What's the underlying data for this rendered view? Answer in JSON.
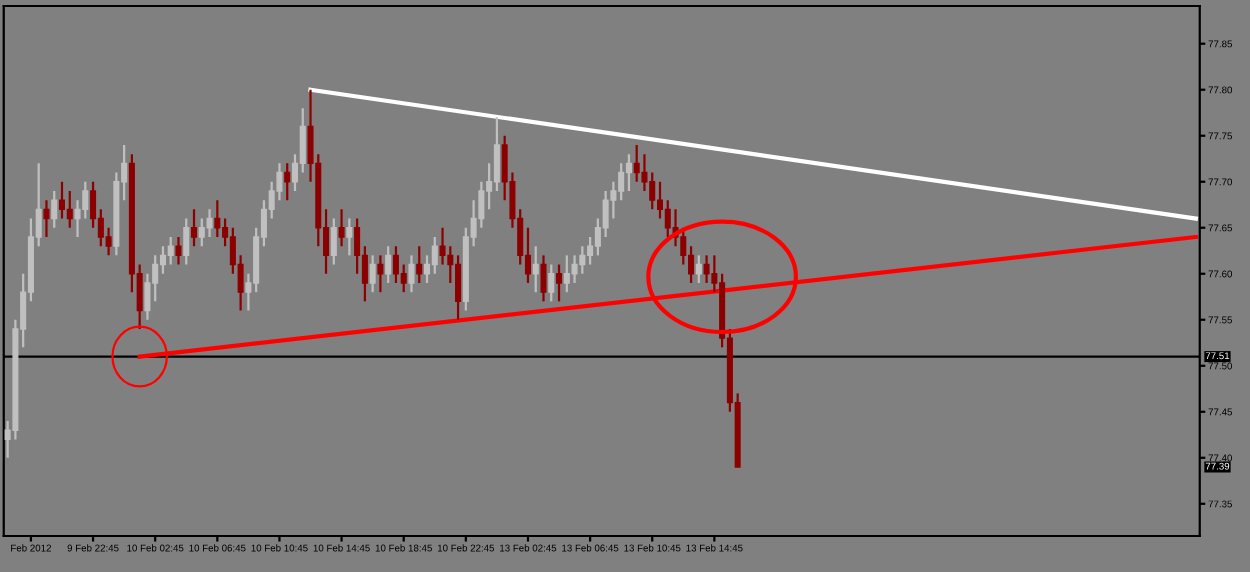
{
  "chart_data": {
    "type": "candlestick",
    "categories": [
      null,
      null,
      null,
      "Feb 2012",
      null,
      null,
      null,
      null,
      null,
      null,
      null,
      "9 Feb 22:45",
      null,
      null,
      null,
      null,
      null,
      null,
      null,
      "10 Feb 02:45",
      null,
      null,
      null,
      null,
      null,
      null,
      null,
      "10 Feb 06:45",
      null,
      null,
      null,
      null,
      null,
      null,
      null,
      "10 Feb 10:45",
      null,
      null,
      null,
      null,
      null,
      null,
      null,
      "10 Feb 14:45",
      null,
      null,
      null,
      null,
      null,
      null,
      null,
      "10 Feb 18:45",
      null,
      null,
      null,
      null,
      null,
      null,
      null,
      "10 Feb 22:45",
      null,
      null,
      null,
      null,
      null,
      null,
      null,
      "13 Feb 02:45",
      null,
      null,
      null,
      null,
      null,
      null,
      null,
      "13 Feb 06:45",
      null,
      null,
      null,
      null,
      null,
      null,
      null,
      "13 Feb 10:45",
      null,
      null,
      null,
      null,
      null,
      null,
      null,
      "13 Feb 14:45",
      null,
      null,
      null,
      null,
      null,
      null,
      null,
      null,
      null,
      null,
      null,
      null,
      null,
      null,
      null,
      null,
      null,
      null,
      null,
      null,
      null,
      null,
      null,
      null,
      null,
      null,
      null,
      null,
      null,
      null,
      null,
      null,
      null,
      null,
      null,
      null,
      null,
      null,
      null,
      null,
      null,
      null,
      null,
      null,
      null,
      null,
      null,
      null,
      null,
      null,
      null,
      null,
      null,
      null,
      null,
      null,
      null,
      null,
      null,
      null,
      null,
      null
    ],
    "ohlc": [
      [
        77.42,
        77.44,
        77.4,
        77.43
      ],
      [
        77.43,
        77.55,
        77.42,
        77.54
      ],
      [
        77.54,
        77.6,
        77.52,
        77.58
      ],
      [
        77.58,
        77.66,
        77.57,
        77.64
      ],
      [
        77.64,
        77.72,
        77.63,
        77.67
      ],
      [
        77.67,
        77.68,
        77.64,
        77.66
      ],
      [
        77.66,
        77.69,
        77.65,
        77.68
      ],
      [
        77.68,
        77.7,
        77.66,
        77.67
      ],
      [
        77.67,
        77.69,
        77.65,
        77.66
      ],
      [
        77.66,
        77.68,
        77.64,
        77.67
      ],
      [
        77.67,
        77.7,
        77.66,
        77.69
      ],
      [
        77.69,
        77.7,
        77.65,
        77.66
      ],
      [
        77.66,
        77.67,
        77.63,
        77.64
      ],
      [
        77.64,
        77.65,
        77.62,
        77.63
      ],
      [
        77.63,
        77.71,
        77.62,
        77.7
      ],
      [
        77.7,
        77.74,
        77.68,
        77.72
      ],
      [
        77.72,
        77.73,
        77.58,
        77.6
      ],
      [
        77.6,
        77.61,
        77.54,
        77.56
      ],
      [
        77.56,
        77.6,
        77.55,
        77.59
      ],
      [
        77.59,
        77.62,
        77.57,
        77.61
      ],
      [
        77.61,
        77.63,
        77.6,
        77.62
      ],
      [
        77.62,
        77.64,
        77.61,
        77.63
      ],
      [
        77.63,
        77.64,
        77.61,
        77.62
      ],
      [
        77.62,
        77.66,
        77.61,
        77.65
      ],
      [
        77.65,
        77.67,
        77.63,
        77.64
      ],
      [
        77.64,
        77.66,
        77.63,
        77.65
      ],
      [
        77.65,
        77.67,
        77.64,
        77.66
      ],
      [
        77.66,
        77.68,
        77.64,
        77.65
      ],
      [
        77.65,
        77.66,
        77.63,
        77.64
      ],
      [
        77.64,
        77.65,
        77.6,
        77.61
      ],
      [
        77.61,
        77.62,
        77.56,
        77.58
      ],
      [
        77.58,
        77.6,
        77.56,
        77.59
      ],
      [
        77.59,
        77.65,
        77.58,
        77.64
      ],
      [
        77.64,
        77.68,
        77.63,
        77.67
      ],
      [
        77.67,
        77.7,
        77.66,
        77.69
      ],
      [
        77.69,
        77.72,
        77.68,
        77.71
      ],
      [
        77.71,
        77.72,
        77.68,
        77.7
      ],
      [
        77.7,
        77.73,
        77.69,
        77.72
      ],
      [
        77.72,
        77.78,
        77.71,
        77.76
      ],
      [
        77.76,
        77.8,
        77.7,
        77.72
      ],
      [
        77.72,
        77.73,
        77.63,
        77.65
      ],
      [
        77.65,
        77.67,
        77.6,
        77.62
      ],
      [
        77.62,
        77.66,
        77.61,
        77.65
      ],
      [
        77.65,
        77.67,
        77.63,
        77.64
      ],
      [
        77.64,
        77.66,
        77.62,
        77.65
      ],
      [
        77.65,
        77.66,
        77.6,
        77.62
      ],
      [
        77.62,
        77.63,
        77.57,
        77.59
      ],
      [
        77.59,
        77.62,
        77.58,
        77.61
      ],
      [
        77.61,
        77.62,
        77.58,
        77.6
      ],
      [
        77.6,
        77.63,
        77.59,
        77.62
      ],
      [
        77.62,
        77.63,
        77.59,
        77.6
      ],
      [
        77.6,
        77.61,
        77.58,
        77.59
      ],
      [
        77.59,
        77.62,
        77.58,
        77.61
      ],
      [
        77.61,
        77.63,
        77.59,
        77.6
      ],
      [
        77.6,
        77.62,
        77.59,
        77.61
      ],
      [
        77.61,
        77.64,
        77.6,
        77.63
      ],
      [
        77.63,
        77.65,
        77.61,
        77.62
      ],
      [
        77.62,
        77.63,
        77.59,
        77.61
      ],
      [
        77.61,
        77.62,
        77.55,
        77.57
      ],
      [
        77.57,
        77.65,
        77.56,
        77.64
      ],
      [
        77.64,
        77.68,
        77.63,
        77.66
      ],
      [
        77.66,
        77.7,
        77.65,
        77.69
      ],
      [
        77.69,
        77.72,
        77.67,
        77.7
      ],
      [
        77.7,
        77.77,
        77.69,
        77.74
      ],
      [
        77.74,
        77.75,
        77.68,
        77.7
      ],
      [
        77.7,
        77.71,
        77.65,
        77.66
      ],
      [
        77.66,
        77.67,
        77.61,
        77.62
      ],
      [
        77.62,
        77.65,
        77.59,
        77.6
      ],
      [
        77.6,
        77.63,
        77.58,
        77.61
      ],
      [
        77.61,
        77.62,
        77.57,
        77.58
      ],
      [
        77.58,
        77.61,
        77.57,
        77.6
      ],
      [
        77.6,
        77.61,
        77.57,
        77.59
      ],
      [
        77.59,
        77.62,
        77.58,
        77.6
      ],
      [
        77.6,
        77.62,
        77.59,
        77.61
      ],
      [
        77.61,
        77.63,
        77.6,
        77.62
      ],
      [
        77.62,
        77.64,
        77.61,
        77.63
      ],
      [
        77.63,
        77.66,
        77.62,
        77.65
      ],
      [
        77.65,
        77.69,
        77.64,
        77.68
      ],
      [
        77.68,
        77.7,
        77.66,
        77.69
      ],
      [
        77.69,
        77.72,
        77.68,
        77.71
      ],
      [
        77.71,
        77.73,
        77.69,
        77.72
      ],
      [
        77.72,
        77.74,
        77.7,
        77.71
      ],
      [
        77.71,
        77.73,
        77.69,
        77.7
      ],
      [
        77.7,
        77.71,
        77.67,
        77.68
      ],
      [
        77.68,
        77.7,
        77.66,
        77.67
      ],
      [
        77.67,
        77.68,
        77.64,
        77.65
      ],
      [
        77.65,
        77.67,
        77.63,
        77.64
      ],
      [
        77.64,
        77.65,
        77.61,
        77.62
      ],
      [
        77.62,
        77.63,
        77.59,
        77.6
      ],
      [
        77.6,
        77.62,
        77.59,
        77.61
      ],
      [
        77.61,
        77.62,
        77.59,
        77.6
      ],
      [
        77.6,
        77.62,
        77.58,
        77.59
      ],
      [
        77.59,
        77.6,
        77.52,
        77.53
      ],
      [
        77.53,
        77.54,
        77.45,
        77.46
      ],
      [
        77.46,
        77.47,
        77.39,
        77.39
      ],
      null,
      null,
      null,
      null,
      null,
      null,
      null,
      null,
      null,
      null,
      null,
      null,
      null,
      null,
      null,
      null,
      null,
      null,
      null,
      null,
      null,
      null,
      null,
      null,
      null,
      null,
      null,
      null,
      null,
      null,
      null,
      null,
      null,
      null,
      null,
      null,
      null,
      null,
      null,
      null,
      null,
      null,
      null,
      null,
      null,
      null,
      null,
      null,
      null,
      null,
      null,
      null,
      null,
      null,
      null,
      null,
      null,
      null,
      null
    ],
    "colors": [
      "#c0c0c0",
      "#c0c0c0",
      "#c0c0c0",
      "#c0c0c0",
      "#c0c0c0",
      "#8b0000",
      "#c0c0c0",
      "#8b0000",
      "#8b0000",
      "#c0c0c0",
      "#c0c0c0",
      "#8b0000",
      "#8b0000",
      "#8b0000",
      "#c0c0c0",
      "#c0c0c0",
      "#8b0000",
      "#8b0000",
      "#c0c0c0",
      "#c0c0c0",
      "#c0c0c0",
      "#c0c0c0",
      "#8b0000",
      "#c0c0c0",
      "#8b0000",
      "#c0c0c0",
      "#c0c0c0",
      "#8b0000",
      "#8b0000",
      "#8b0000",
      "#8b0000",
      "#c0c0c0",
      "#c0c0c0",
      "#c0c0c0",
      "#c0c0c0",
      "#c0c0c0",
      "#8b0000",
      "#c0c0c0",
      "#c0c0c0",
      "#8b0000",
      "#8b0000",
      "#8b0000",
      "#c0c0c0",
      "#8b0000",
      "#c0c0c0",
      "#8b0000",
      "#8b0000",
      "#c0c0c0",
      "#8b0000",
      "#c0c0c0",
      "#8b0000",
      "#8b0000",
      "#c0c0c0",
      "#8b0000",
      "#c0c0c0",
      "#c0c0c0",
      "#8b0000",
      "#8b0000",
      "#8b0000",
      "#c0c0c0",
      "#c0c0c0",
      "#c0c0c0",
      "#c0c0c0",
      "#c0c0c0",
      "#8b0000",
      "#8b0000",
      "#8b0000",
      "#8b0000",
      "#c0c0c0",
      "#8b0000",
      "#c0c0c0",
      "#8b0000",
      "#c0c0c0",
      "#c0c0c0",
      "#c0c0c0",
      "#c0c0c0",
      "#c0c0c0",
      "#c0c0c0",
      "#c0c0c0",
      "#c0c0c0",
      "#c0c0c0",
      "#8b0000",
      "#8b0000",
      "#8b0000",
      "#8b0000",
      "#8b0000",
      "#8b0000",
      "#8b0000",
      "#8b0000",
      "#c0c0c0",
      "#8b0000",
      "#8b0000",
      "#8b0000",
      "#8b0000",
      "#8b0000",
      null,
      null,
      null,
      null,
      null,
      null,
      null,
      null,
      null,
      null,
      null,
      null,
      null,
      null,
      null,
      null,
      null,
      null,
      null,
      null,
      null,
      null,
      null,
      null,
      null,
      null,
      null,
      null,
      null,
      null,
      null,
      null,
      null,
      null,
      null,
      null,
      null,
      null,
      null,
      null,
      null,
      null,
      null,
      null,
      null,
      null,
      null,
      null,
      null,
      null,
      null,
      null,
      null,
      null,
      null,
      null,
      null,
      null,
      null
    ],
    "series": [
      {
        "type": "line",
        "color": "#ffffff",
        "values": [
          null,
          null,
          null,
          null,
          null,
          null,
          null,
          null,
          null,
          null,
          null,
          null,
          null,
          null,
          null,
          null,
          null,
          null,
          null,
          null,
          null,
          null,
          null,
          null,
          null,
          null,
          null,
          null,
          null,
          null,
          null,
          null,
          null,
          null,
          null,
          null,
          null,
          null,
          null,
          77.8,
          null,
          null,
          null,
          null,
          null,
          null,
          null,
          null,
          null,
          null,
          null,
          null,
          null,
          null,
          null,
          null,
          null,
          null,
          null,
          null,
          null,
          null,
          null,
          null,
          null,
          null,
          null,
          null,
          null,
          null,
          null,
          null,
          null,
          null,
          null,
          null,
          null,
          null,
          null,
          null,
          null,
          null,
          null,
          null,
          null,
          null,
          null,
          null,
          null,
          null,
          null,
          null,
          null,
          null,
          null,
          null,
          null,
          null,
          null,
          null,
          null,
          null,
          null,
          null,
          null,
          null,
          null,
          null,
          null,
          null,
          null,
          null,
          null,
          null,
          null,
          null,
          null,
          null,
          null,
          null,
          null,
          null,
          null,
          null,
          null,
          null,
          null,
          null,
          null,
          null,
          null,
          null,
          null,
          null,
          null,
          null,
          null,
          null,
          null,
          null,
          null,
          null,
          null,
          null,
          null,
          null,
          null,
          null,
          null,
          null,
          null,
          null,
          null,
          77.66
        ]
      },
      {
        "type": "line",
        "color": "#ff0000",
        "values": [
          null,
          null,
          null,
          null,
          null,
          null,
          null,
          null,
          null,
          null,
          null,
          null,
          null,
          null,
          null,
          null,
          null,
          77.51,
          null,
          null,
          null,
          null,
          null,
          null,
          null,
          null,
          null,
          null,
          null,
          null,
          null,
          null,
          null,
          null,
          null,
          null,
          null,
          null,
          null,
          null,
          null,
          null,
          null,
          null,
          null,
          null,
          null,
          null,
          null,
          null,
          null,
          null,
          null,
          null,
          null,
          null,
          null,
          null,
          null,
          null,
          null,
          null,
          null,
          null,
          null,
          null,
          null,
          null,
          null,
          null,
          null,
          null,
          null,
          null,
          null,
          null,
          null,
          null,
          null,
          null,
          null,
          null,
          null,
          null,
          null,
          null,
          null,
          null,
          null,
          null,
          null,
          null,
          null,
          null,
          null,
          null,
          null,
          null,
          null,
          null,
          null,
          null,
          null,
          null,
          null,
          null,
          null,
          null,
          null,
          null,
          null,
          null,
          null,
          null,
          null,
          null,
          null,
          null,
          null,
          null,
          null,
          null,
          null,
          null,
          null,
          null,
          null,
          null,
          null,
          null,
          null,
          null,
          null,
          null,
          null,
          null,
          null,
          null,
          null,
          null,
          null,
          null,
          null,
          null,
          null,
          null,
          null,
          null,
          null,
          null,
          null,
          null,
          null,
          77.64
        ]
      }
    ],
    "ylim": [
      77.315,
      77.891
    ],
    "yticks": [
      77.35,
      {
        "value": 77.4,
        "label": "77.40"
      },
      77.45,
      {
        "value": 77.5,
        "label": "77.50"
      },
      77.55,
      {
        "value": 77.6,
        "label": "77.60"
      },
      77.65,
      {
        "value": 77.7,
        "label": "77.70"
      },
      77.75,
      {
        "value": 77.8,
        "label": "77.80"
      },
      77.85
    ],
    "ref_lines": [
      {
        "axis": "y",
        "value": 77.51,
        "label": "77.51",
        "color": "#000000"
      }
    ],
    "annotations": [
      {
        "text": "77.39",
        "y": 77.39
      }
    ],
    "grid": false,
    "legend": false
  }
}
